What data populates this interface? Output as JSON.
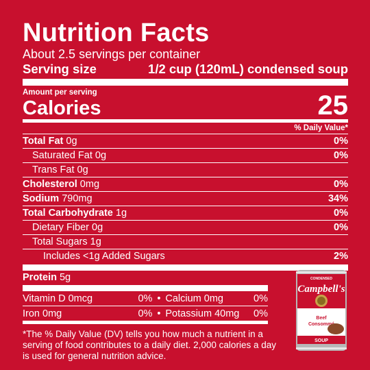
{
  "label": {
    "title": "Nutrition Facts",
    "servings_per_container": "About 2.5 servings per container",
    "serving_size_label": "Serving size",
    "serving_size_value": "1/2 cup (120mL) condensed soup",
    "amount_per_serving": "Amount per serving",
    "calories_label": "Calories",
    "calories_value": "25",
    "daily_value_header": "% Daily Value*"
  },
  "nutrients": [
    {
      "name": "Total Fat",
      "amount": "0g",
      "dv": "0%"
    },
    {
      "name": "Saturated Fat",
      "amount": "0g",
      "dv": "0%"
    },
    {
      "name": "Trans Fat",
      "amount": "0g",
      "dv": ""
    },
    {
      "name": "Cholesterol",
      "amount": "0mg",
      "dv": "0%"
    },
    {
      "name": "Sodium",
      "amount": "790mg",
      "dv": "34%"
    },
    {
      "name": "Total Carbohydrate",
      "amount": "1g",
      "dv": "0%"
    },
    {
      "name": "Dietary Fiber",
      "amount": "0g",
      "dv": "0%"
    },
    {
      "name": "Total Sugars",
      "amount": "1g",
      "dv": ""
    },
    {
      "name": "Includes <1g Added Sugars",
      "amount": "",
      "dv": "2%"
    },
    {
      "name": "Protein",
      "amount": "5g",
      "dv": ""
    }
  ],
  "micronutrients": [
    {
      "left": "Vitamin D 0mcg",
      "left_dv": "0%",
      "separator": "•",
      "right": "Calcium 0mg",
      "right_dv": "0%"
    },
    {
      "left": "Iron 0mg",
      "left_dv": "0%",
      "separator": "•",
      "right": "Potassium 40mg",
      "right_dv": "0%"
    }
  ],
  "footnote": "*The % Daily Value (DV) tells you how much a nutrient in a serving of food contributes to a daily diet. 2,000 calories a day is used for general nutrition advice.",
  "product": {
    "top_text": "CONDENSED",
    "brand": "Campbell's",
    "variety_line1": "Beef",
    "variety_line2": "Consommé",
    "bottom_text": "SOUP",
    "colors": {
      "red": "#c8102e",
      "white": "#ffffff",
      "gold": "#c9a34a",
      "broth": "#8a4a2a"
    }
  }
}
